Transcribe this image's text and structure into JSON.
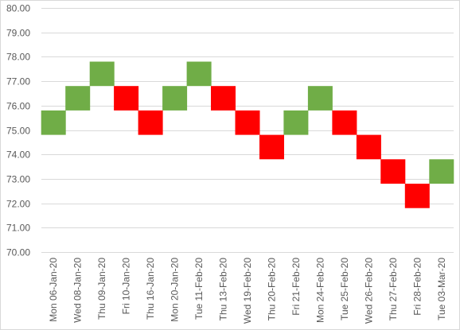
{
  "chart_data": {
    "type": "bar",
    "subtype": "renko",
    "title": "",
    "xlabel": "",
    "ylabel": "",
    "ylim": [
      70,
      80
    ],
    "y_ticks": [
      "70.00",
      "71.00",
      "72.00",
      "73.00",
      "74.00",
      "75.00",
      "76.00",
      "77.00",
      "78.00",
      "79.00",
      "80.00"
    ],
    "grid": true,
    "legend": "none",
    "colors": {
      "up": "#70ad47",
      "down": "#ff0000",
      "grid": "#d9d9d9",
      "text": "#595959"
    },
    "categories": [
      "Mon 06-Jan-20",
      "Wed 08-Jan-20",
      "Thu 09-Jan-20",
      "Fri 10-Jan-20",
      "Thu 16-Jan-20",
      "Mon 20-Jan-20",
      "Tue 11-Feb-20",
      "Thu 13-Feb-20",
      "Wed 19-Feb-20",
      "Thu 20-Feb-20",
      "Fri 21-Feb-20",
      "Mon 24-Feb-20",
      "Tue 25-Feb-20",
      "Wed 26-Feb-20",
      "Thu 27-Feb-20",
      "Fri 28-Feb-20",
      "Tue 03-Mar-20"
    ],
    "bricks": [
      {
        "low": 74.8,
        "high": 75.8,
        "direction": "up"
      },
      {
        "low": 75.8,
        "high": 76.8,
        "direction": "up"
      },
      {
        "low": 76.8,
        "high": 77.8,
        "direction": "up"
      },
      {
        "low": 75.8,
        "high": 76.8,
        "direction": "down"
      },
      {
        "low": 74.8,
        "high": 75.8,
        "direction": "down"
      },
      {
        "low": 75.8,
        "high": 76.8,
        "direction": "up"
      },
      {
        "low": 76.8,
        "high": 77.8,
        "direction": "up"
      },
      {
        "low": 75.8,
        "high": 76.8,
        "direction": "down"
      },
      {
        "low": 74.8,
        "high": 75.8,
        "direction": "down"
      },
      {
        "low": 73.8,
        "high": 74.8,
        "direction": "down"
      },
      {
        "low": 74.8,
        "high": 75.8,
        "direction": "up"
      },
      {
        "low": 75.8,
        "high": 76.8,
        "direction": "up"
      },
      {
        "low": 74.8,
        "high": 75.8,
        "direction": "down"
      },
      {
        "low": 73.8,
        "high": 74.8,
        "direction": "down"
      },
      {
        "low": 72.8,
        "high": 73.8,
        "direction": "down"
      },
      {
        "low": 71.8,
        "high": 72.8,
        "direction": "down"
      },
      {
        "low": 72.8,
        "high": 73.8,
        "direction": "up"
      }
    ]
  }
}
